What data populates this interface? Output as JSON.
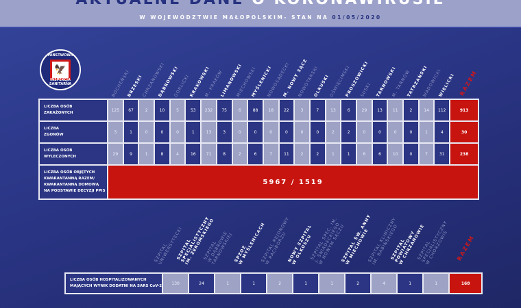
{
  "header": {
    "title_a": "AKTUALNE DANE",
    "title_b": "O KORONAWIRUSIE",
    "subtitle": "W WOJEWÓDZTWIE MAŁOPOLSKIM- STAN NA",
    "date": "01/05/2020"
  },
  "logo": {
    "top": "PAŃSTWOWA",
    "bottom": "INSPEKCJA SANITARNA"
  },
  "colors": {
    "light": "#9ea3c5",
    "dark": "#2b3583",
    "red": "#c8140f",
    "header": "#9ba1c9"
  },
  "districts": [
    "BOCHEŃSKI",
    "BRZESKI",
    "CHRZANOWSKI",
    "DĄBROWSKI",
    "GORLICKI",
    "KRAKOWSKI",
    "M. KRAKÓW",
    "LIMANOWSKI",
    "MIECHOWSKI",
    "MYŚLENICKI",
    "NOWOSĄDECKI",
    "M. NOWY SĄCZ",
    "NOWOTARSKI",
    "OLKUSKI",
    "OŚWIĘCIMSKI",
    "PROSZOWICKI",
    "SUSKI",
    "TARNOWSKI",
    "M. TARNÓW",
    "TATRZAŃSKI",
    "WADOWICKI",
    "WIELICKI"
  ],
  "total_label": "RAZEM",
  "rows": [
    {
      "label": "LICZBA OSÓB\nZAKAŻONYCH",
      "values": [
        "125",
        "67",
        "2",
        "10",
        "5",
        "53",
        "232",
        "75",
        "6",
        "88",
        "18",
        "22",
        "3",
        "7",
        "13",
        "6",
        "29",
        "13",
        "11",
        "2",
        "14",
        "112"
      ],
      "total": "913"
    },
    {
      "label": "LICZBA\nZGONÓW",
      "values": [
        "3",
        "1",
        "0",
        "0",
        "0",
        "1",
        "13",
        "3",
        "0",
        "0",
        "0",
        "0",
        "0",
        "0",
        "2",
        "2",
        "0",
        "0",
        "0",
        "0",
        "1",
        "4"
      ],
      "total": "30"
    },
    {
      "label": "LICZBA OSÓB\nWYLECZONYCH",
      "values": [
        "29",
        "9",
        "1",
        "8",
        "4",
        "16",
        "71",
        "8",
        "2",
        "6",
        "7",
        "11",
        "2",
        "2",
        "1",
        "1",
        "6",
        "6",
        "10",
        "0",
        "7",
        "31"
      ],
      "total": "238"
    }
  ],
  "quarantine": {
    "label": "LICZBA OSÓB OBJĘTYCH\nKWARANTANNĄ RAZEM/\nKWARANTANNĄ DOMOWĄ\nNA PODSTAWIE DECYZJI PPIS",
    "value": "5967 / 1519"
  },
  "hospitals": [
    "SZPITAL\nUNIWERSYTECKI",
    "SZPITAL\nSPECJALISTYCZNY\nIM. ŻEROMSKIEGO",
    "SZPITAL\nW DĄBROWIE\nTARNOWSKIEJ",
    "SPZOZ\nW MYŚLENICACH",
    "SZPITAL REJONOWY\nW RACIBORZU",
    "NOWY SZPITAL\nW OLKUSZU",
    "SZPITAL SPEC. IM.\nJ. ŚNIADECKIEGO\nW NOWYM SĄCZU",
    "SZPITAL ŚW. ANNY\nW MIECHOWIE",
    "SZPITAL KLINICZNY\nIM. BABIŃSKIEGO",
    "SZPITAL\nPOWIATOWY\nW CHRZANOWIE",
    "SZPITAL\nSPECJALISTYCZNY\nW CHORZOWIE"
  ],
  "hospital_row": {
    "label": "LICZBA OSÓB HOSPITALIZOWANYCH\nMAJĄCYCH WYNIK DODATNI NA SARS CoV-2",
    "values": [
      "130",
      "24",
      "1",
      "1",
      "2",
      "1",
      "1",
      "2",
      "4",
      "1",
      "1"
    ],
    "total": "168"
  }
}
